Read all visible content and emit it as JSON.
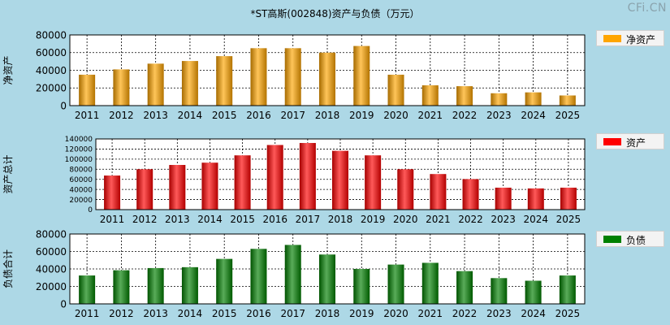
{
  "title": "*ST高斯(002848)资产与负债（万元）",
  "watermark": "CFi.CN",
  "chart_data": [
    {
      "type": "bar",
      "ylabel": "净资产",
      "legend": "净资产",
      "color": "#ffa500",
      "categories": [
        "2011",
        "2012",
        "2013",
        "2014",
        "2015",
        "2016",
        "2017",
        "2018",
        "2019",
        "2020",
        "2021",
        "2022",
        "2023",
        "2024",
        "2025"
      ],
      "values": [
        35000,
        41000,
        47500,
        50500,
        56000,
        65000,
        65000,
        60000,
        67500,
        35000,
        23000,
        22000,
        14000,
        15000,
        11500
      ],
      "ylim": [
        0,
        80000
      ],
      "yticks": [
        0,
        20000,
        40000,
        60000,
        80000
      ],
      "grid": true,
      "legend_position": "right"
    },
    {
      "type": "bar",
      "ylabel": "资产总计",
      "legend": "资产",
      "color": "#ff0000",
      "categories": [
        "2011",
        "2012",
        "2013",
        "2014",
        "2015",
        "2016",
        "2017",
        "2018",
        "2019",
        "2020",
        "2021",
        "2022",
        "2023",
        "2024",
        "2025"
      ],
      "values": [
        67500,
        80000,
        88500,
        93000,
        107500,
        128000,
        132000,
        116500,
        107500,
        80000,
        70500,
        60500,
        43500,
        42000,
        43500
      ],
      "ylim": [
        0,
        140000
      ],
      "yticks": [
        0,
        20000,
        40000,
        60000,
        80000,
        100000,
        120000,
        140000
      ],
      "grid": true,
      "legend_position": "right"
    },
    {
      "type": "bar",
      "ylabel": "负债合计",
      "legend": "负债",
      "color": "#008000",
      "categories": [
        "2011",
        "2012",
        "2013",
        "2014",
        "2015",
        "2016",
        "2017",
        "2018",
        "2019",
        "2020",
        "2021",
        "2022",
        "2023",
        "2024",
        "2025"
      ],
      "values": [
        32500,
        38500,
        41000,
        42000,
        51500,
        63000,
        67500,
        56500,
        40000,
        45000,
        47000,
        37500,
        29500,
        26500,
        32500
      ],
      "ylim": [
        0,
        80000
      ],
      "yticks": [
        0,
        20000,
        40000,
        60000,
        80000
      ],
      "grid": true,
      "legend_position": "right"
    }
  ]
}
